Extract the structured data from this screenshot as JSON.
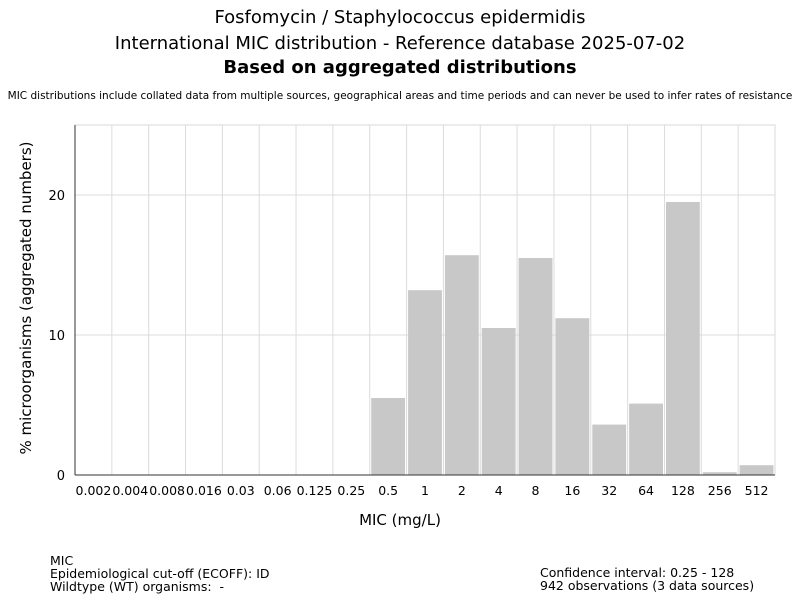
{
  "chart_data": {
    "type": "bar",
    "title": "Fosfomycin / Staphylococcus epidermidis",
    "subtitle": "International MIC distribution - Reference database 2025-07-02",
    "subtitle_bold": "Based on aggregated distributions",
    "note": "MIC distributions include collated data from multiple sources, geographical areas and time periods and can never be used to infer rates of resistance",
    "xlabel": "MIC (mg/L)",
    "ylabel": "% microorganisms (aggregated numbers)",
    "categories": [
      "0.002",
      "0.004",
      "0.008",
      "0.016",
      "0.03",
      "0.06",
      "0.125",
      "0.25",
      "0.5",
      "1",
      "2",
      "4",
      "8",
      "16",
      "32",
      "64",
      "128",
      "256",
      "512"
    ],
    "values": [
      0,
      0,
      0,
      0,
      0,
      0,
      0,
      0,
      5.5,
      13.2,
      15.7,
      10.5,
      15.5,
      11.2,
      3.6,
      5.1,
      19.5,
      0.2,
      0.7
    ],
    "yticks": [
      0,
      10,
      20
    ],
    "ylim": [
      0,
      25
    ],
    "grid": true,
    "bar_color": "#c8c8c8"
  },
  "footer": {
    "left": [
      "MIC",
      "Epidemiological cut-off (ECOFF): ID",
      "Wildtype (WT) organisms:  -"
    ],
    "right": [
      "Confidence interval: 0.25 - 128",
      "942 observations (3 data sources)"
    ]
  }
}
